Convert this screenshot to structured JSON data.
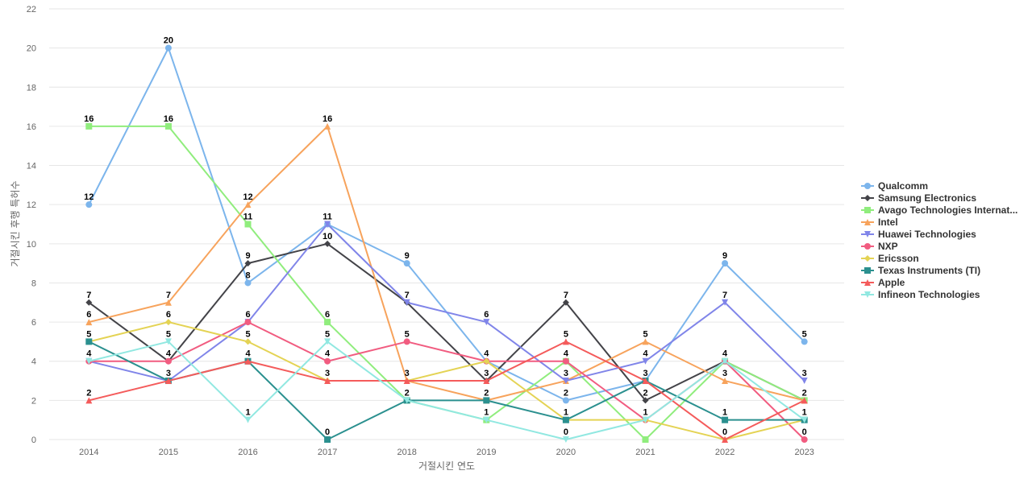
{
  "chart_data": {
    "type": "line",
    "xlabel": "거절시킨 연도",
    "ylabel": "거절시킨 후행 특허수",
    "ylim": [
      0,
      22
    ],
    "yticks": [
      0,
      2,
      4,
      6,
      8,
      10,
      12,
      14,
      16,
      18,
      20,
      22
    ],
    "grid": true,
    "legend_position": "right",
    "categories": [
      "2014",
      "2015",
      "2016",
      "2017",
      "2018",
      "2019",
      "2020",
      "2021",
      "2022",
      "2023"
    ],
    "series": [
      {
        "name": "Qualcomm",
        "color": "#7cb5ec",
        "marker": "circle",
        "values": [
          12,
          20,
          8,
          11,
          9,
          4,
          2,
          3,
          9,
          5
        ]
      },
      {
        "name": "Samsung Electronics",
        "color": "#434348",
        "marker": "diamond",
        "values": [
          7,
          4,
          9,
          10,
          7,
          3,
          7,
          2,
          4,
          2
        ]
      },
      {
        "name": "Avago Technologies Internat...",
        "color": "#90ed7d",
        "marker": "square",
        "values": [
          16,
          16,
          11,
          6,
          2,
          1,
          4,
          0,
          4,
          2
        ]
      },
      {
        "name": "Intel",
        "color": "#f7a35c",
        "marker": "triangle",
        "values": [
          6,
          7,
          12,
          16,
          3,
          2,
          3,
          5,
          3,
          2
        ]
      },
      {
        "name": "Huawei Technologies",
        "color": "#8085e9",
        "marker": "triangle-down",
        "values": [
          4,
          3,
          6,
          11,
          7,
          6,
          3,
          4,
          7,
          3
        ]
      },
      {
        "name": "NXP",
        "color": "#f15c80",
        "marker": "circle",
        "values": [
          4,
          4,
          6,
          4,
          5,
          4,
          4,
          1,
          4,
          0
        ]
      },
      {
        "name": "Ericsson",
        "color": "#e4d354",
        "marker": "diamond",
        "values": [
          5,
          6,
          5,
          3,
          3,
          4,
          1,
          1,
          0,
          1
        ]
      },
      {
        "name": "Texas Instruments (TI)",
        "color": "#2b908f",
        "marker": "square",
        "values": [
          5,
          3,
          4,
          0,
          2,
          2,
          1,
          3,
          1,
          1
        ]
      },
      {
        "name": "Apple",
        "color": "#f45b5b",
        "marker": "triangle",
        "values": [
          2,
          3,
          4,
          3,
          3,
          3,
          5,
          3,
          0,
          2
        ]
      },
      {
        "name": "Infineon Technologies",
        "color": "#91e8e1",
        "marker": "triangle-down",
        "values": [
          4,
          5,
          1,
          5,
          2,
          1,
          0,
          1,
          4,
          1
        ]
      }
    ],
    "data_labels": [
      {
        "x": "2014",
        "text": "16",
        "y": 16
      },
      {
        "x": "2014",
        "text": "12",
        "y": 12
      },
      {
        "x": "2014",
        "text": "7",
        "y": 7
      },
      {
        "x": "2014",
        "text": "6",
        "y": 6
      },
      {
        "x": "2014",
        "text": "5",
        "y": 5
      },
      {
        "x": "2014",
        "text": "4",
        "y": 4
      },
      {
        "x": "2014",
        "text": "2",
        "y": 2
      },
      {
        "x": "2015",
        "text": "20",
        "y": 20
      },
      {
        "x": "2015",
        "text": "16",
        "y": 16
      },
      {
        "x": "2015",
        "text": "7",
        "y": 7
      },
      {
        "x": "2015",
        "text": "6",
        "y": 6
      },
      {
        "x": "2015",
        "text": "5",
        "y": 5
      },
      {
        "x": "2015",
        "text": "4",
        "y": 4
      },
      {
        "x": "2015",
        "text": "3",
        "y": 3
      },
      {
        "x": "2016",
        "text": "12",
        "y": 12
      },
      {
        "x": "2016",
        "text": "11",
        "y": 11
      },
      {
        "x": "2016",
        "text": "9",
        "y": 9
      },
      {
        "x": "2016",
        "text": "8",
        "y": 8
      },
      {
        "x": "2016",
        "text": "6",
        "y": 6
      },
      {
        "x": "2016",
        "text": "5",
        "y": 5
      },
      {
        "x": "2016",
        "text": "4",
        "y": 4
      },
      {
        "x": "2016",
        "text": "1",
        "y": 1
      },
      {
        "x": "2017",
        "text": "16",
        "y": 16
      },
      {
        "x": "2017",
        "text": "11",
        "y": 11
      },
      {
        "x": "2017",
        "text": "10",
        "y": 10
      },
      {
        "x": "2017",
        "text": "6",
        "y": 6
      },
      {
        "x": "2017",
        "text": "5",
        "y": 5
      },
      {
        "x": "2017",
        "text": "4",
        "y": 4
      },
      {
        "x": "2017",
        "text": "3",
        "y": 3
      },
      {
        "x": "2017",
        "text": "0",
        "y": 0
      },
      {
        "x": "2018",
        "text": "9",
        "y": 9
      },
      {
        "x": "2018",
        "text": "7",
        "y": 7
      },
      {
        "x": "2018",
        "text": "5",
        "y": 5
      },
      {
        "x": "2018",
        "text": "3",
        "y": 3
      },
      {
        "x": "2018",
        "text": "2",
        "y": 2
      },
      {
        "x": "2019",
        "text": "6",
        "y": 6
      },
      {
        "x": "2019",
        "text": "4",
        "y": 4
      },
      {
        "x": "2019",
        "text": "3",
        "y": 3
      },
      {
        "x": "2019",
        "text": "2",
        "y": 2
      },
      {
        "x": "2019",
        "text": "1",
        "y": 1
      },
      {
        "x": "2020",
        "text": "7",
        "y": 7
      },
      {
        "x": "2020",
        "text": "5",
        "y": 5
      },
      {
        "x": "2020",
        "text": "4",
        "y": 4
      },
      {
        "x": "2020",
        "text": "3",
        "y": 3
      },
      {
        "x": "2020",
        "text": "2",
        "y": 2
      },
      {
        "x": "2020",
        "text": "1",
        "y": 1
      },
      {
        "x": "2020",
        "text": "0",
        "y": 0
      },
      {
        "x": "2021",
        "text": "5",
        "y": 5
      },
      {
        "x": "2021",
        "text": "4",
        "y": 4
      },
      {
        "x": "2021",
        "text": "3",
        "y": 3
      },
      {
        "x": "2021",
        "text": "2",
        "y": 2
      },
      {
        "x": "2021",
        "text": "1",
        "y": 1
      },
      {
        "x": "2022",
        "text": "9",
        "y": 9
      },
      {
        "x": "2022",
        "text": "7",
        "y": 7
      },
      {
        "x": "2022",
        "text": "4",
        "y": 4
      },
      {
        "x": "2022",
        "text": "3",
        "y": 3
      },
      {
        "x": "2022",
        "text": "1",
        "y": 1
      },
      {
        "x": "2022",
        "text": "0",
        "y": 0
      },
      {
        "x": "2023",
        "text": "5",
        "y": 5
      },
      {
        "x": "2023",
        "text": "3",
        "y": 3
      },
      {
        "x": "2023",
        "text": "2",
        "y": 2
      },
      {
        "x": "2023",
        "text": "1",
        "y": 1
      },
      {
        "x": "2023",
        "text": "0",
        "y": 0
      }
    ]
  }
}
